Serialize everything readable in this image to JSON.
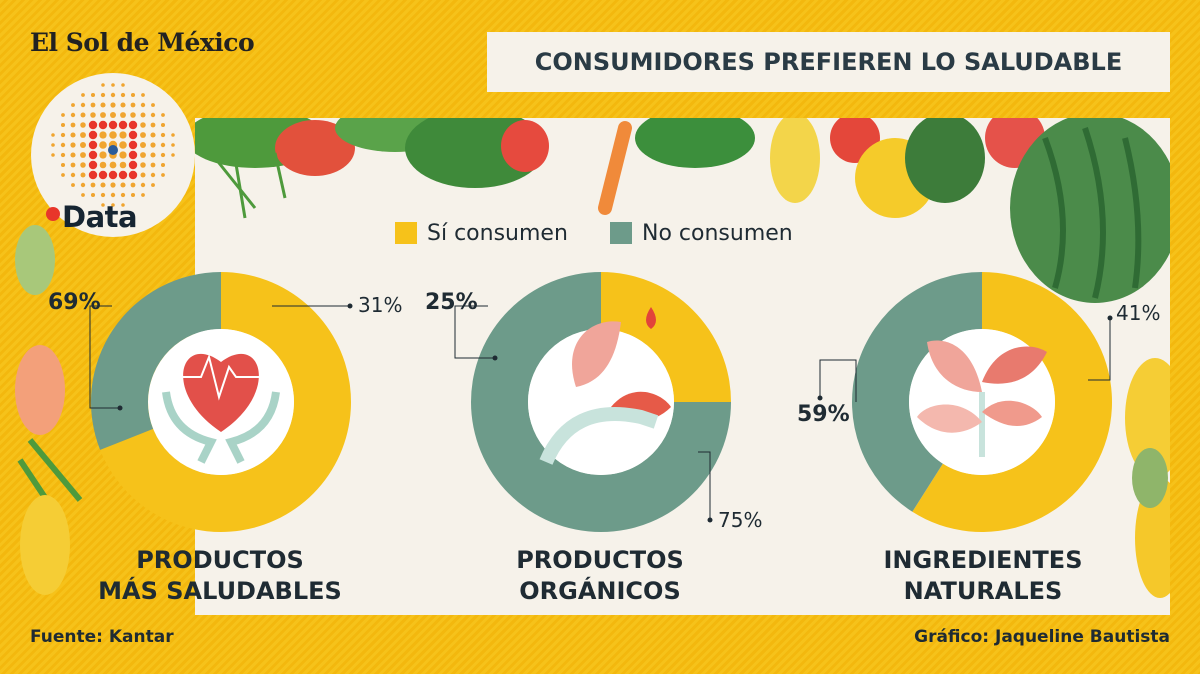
{
  "brand": "El Sol de México",
  "section_label": "Data",
  "header": {
    "title": "CONSUMIDORES PREFIEREN LO SALUDABLE"
  },
  "legend": [
    {
      "label": "Sí consumen",
      "color": "#f6c21a"
    },
    {
      "label": "No consumen",
      "color": "#6d9b8a"
    }
  ],
  "chart_data": [
    {
      "type": "pie",
      "title_lines": [
        "PRODUCTOS",
        "MÁS SALUDABLES"
      ],
      "categories": [
        "Sí consumen",
        "No consumen"
      ],
      "values": [
        69,
        31
      ],
      "labels": [
        "69%",
        "31%"
      ],
      "icon": "heart-hands-icon"
    },
    {
      "type": "pie",
      "title_lines": [
        "PRODUCTOS",
        "ORGÁNICOS"
      ],
      "categories": [
        "Sí consumen",
        "No consumen"
      ],
      "values": [
        25,
        75
      ],
      "labels": [
        "25%",
        "75%"
      ],
      "icon": "leaf-hand-icon"
    },
    {
      "type": "pie",
      "title_lines": [
        "INGREDIENTES",
        "NATURALES"
      ],
      "categories": [
        "Sí consumen",
        "No consumen"
      ],
      "values": [
        59,
        41
      ],
      "labels": [
        "59%",
        "41%"
      ],
      "icon": "plant-icon"
    }
  ],
  "footer": {
    "source": "Fuente: Kantar",
    "credit": "Gráfico: Jaqueline Bautista"
  }
}
